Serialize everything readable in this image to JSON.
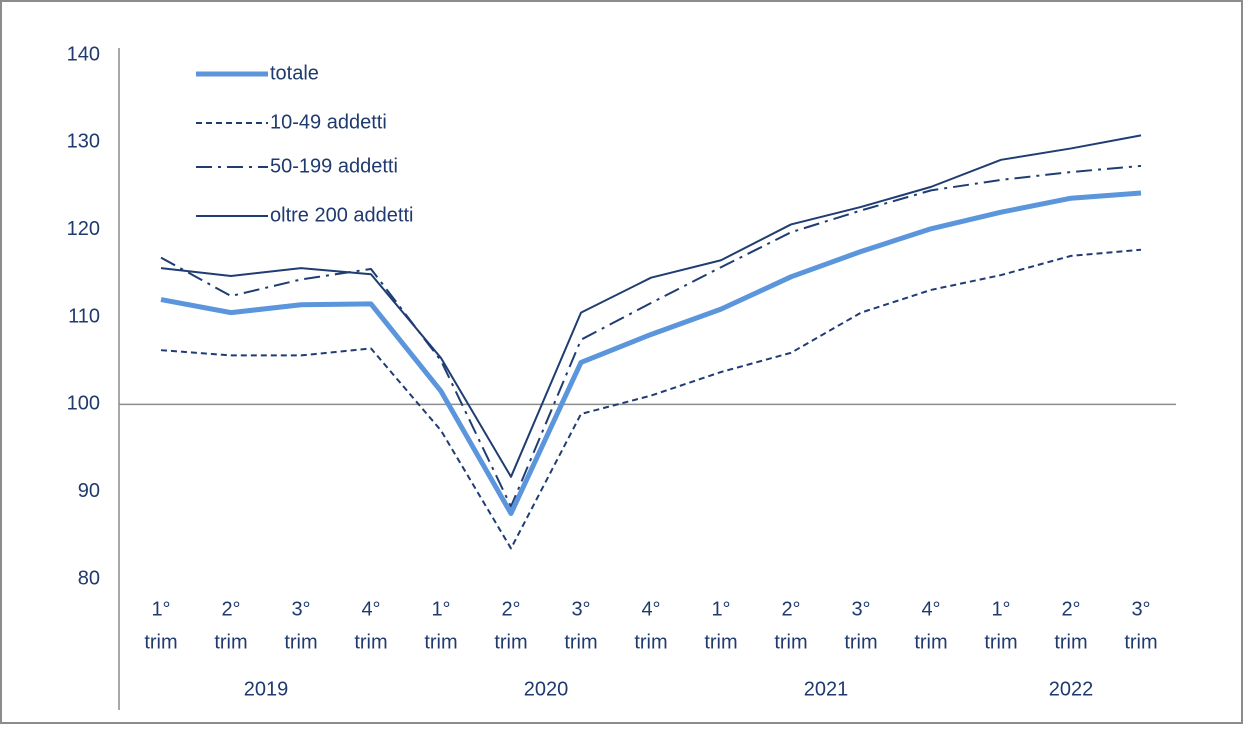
{
  "chart_data": {
    "type": "line",
    "categories": [
      [
        "1°",
        "trim"
      ],
      [
        "2°",
        "trim"
      ],
      [
        "3°",
        "trim"
      ],
      [
        "4°",
        "trim"
      ],
      [
        "1°",
        "trim"
      ],
      [
        "2°",
        "trim"
      ],
      [
        "3°",
        "trim"
      ],
      [
        "4°",
        "trim"
      ],
      [
        "1°",
        "trim"
      ],
      [
        "2°",
        "trim"
      ],
      [
        "3°",
        "trim"
      ],
      [
        "4°",
        "trim"
      ],
      [
        "1°",
        "trim"
      ],
      [
        "2°",
        "trim"
      ],
      [
        "3°",
        "trim"
      ]
    ],
    "years": [
      "2019",
      "2020",
      "2021",
      "2022"
    ],
    "ylim": [
      80,
      140
    ],
    "yticks": [
      80,
      90,
      100,
      110,
      120,
      130,
      140
    ],
    "x_axis_crosses": 100,
    "legend": "upper left",
    "series": [
      {
        "name": "totale",
        "color": "#5b96dc",
        "dash": "solid",
        "width": 5,
        "values": [
          112,
          110.5,
          111.4,
          111.5,
          101.5,
          87.5,
          104.8,
          108,
          110.9,
          114.6,
          117.5,
          120.1,
          122,
          123.6,
          124.2
        ]
      },
      {
        "name": "10-49 addetti",
        "color": "#1f3d73",
        "dash": "dashed",
        "width": 2,
        "values": [
          106.2,
          105.6,
          105.6,
          106.4,
          97,
          83.5,
          98.9,
          101,
          103.7,
          105.9,
          110.5,
          113.1,
          114.8,
          117,
          117.7
        ]
      },
      {
        "name": "50-199 addetti",
        "color": "#1f3d73",
        "dash": "dashdot",
        "width": 2,
        "values": [
          116.8,
          112.4,
          114.3,
          115.5,
          105,
          88.3,
          107.4,
          111.6,
          115.7,
          119.7,
          122.2,
          124.5,
          125.7,
          126.6,
          127.3
        ]
      },
      {
        "name": "oltre 200 addetti",
        "color": "#1f3d73",
        "dash": "solid",
        "width": 2,
        "values": [
          115.6,
          114.7,
          115.6,
          114.9,
          105.3,
          91.7,
          110.5,
          114.5,
          116.5,
          120.6,
          122.6,
          124.9,
          128,
          129.3,
          130.8
        ]
      }
    ]
  }
}
